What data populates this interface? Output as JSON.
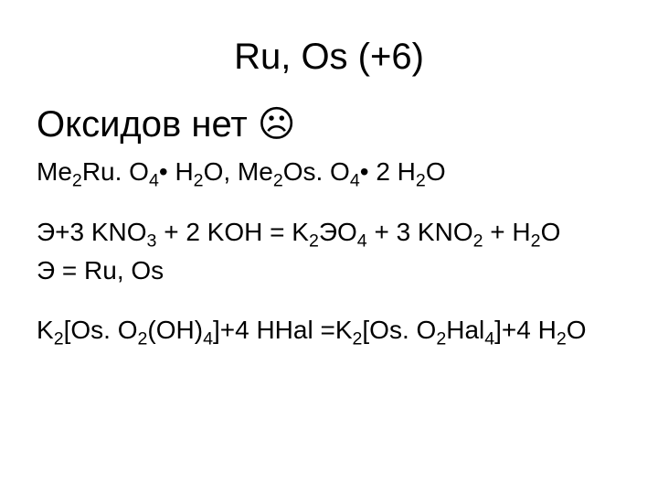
{
  "title": "Ru, Os (+6)",
  "subtitle_prefix": "Оксидов нет ",
  "sad_face": "☹",
  "line1_a": "Me",
  "line1_b": "Ru. O",
  "line1_c": "• H",
  "line1_d": "O, Me",
  "line1_e": "Os. O",
  "line1_f": "• 2 H",
  "line1_g": "O",
  "line2_a": "Э+3 KNO",
  "line2_b": " + 2 KOH = K",
  "line2_c": "ЭO",
  "line2_d": " + 3 KNO",
  "line2_e": " + H",
  "line2_f": "O",
  "line3": "Э = Ru, Os",
  "line4_a": "K",
  "line4_b": "[Os. O",
  "line4_c": "(OH)",
  "line4_d": "]+4 HHal =K",
  "line4_e": "[Os. O",
  "line4_f": "Hal",
  "line4_g": "]+4 H",
  "line4_h": "O",
  "s2": "2",
  "s3": "3",
  "s4": "4",
  "colors": {
    "background": "#ffffff",
    "text": "#000000"
  },
  "font": {
    "title_size": 40,
    "body_size": 28,
    "family": "Arial"
  }
}
